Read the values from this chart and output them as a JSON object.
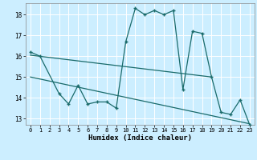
{
  "xlabel": "Humidex (Indice chaleur)",
  "bg_color": "#cceeff",
  "grid_color": "#ffffff",
  "line_color": "#1a6b6b",
  "xlim": [
    -0.5,
    23.5
  ],
  "ylim": [
    12.7,
    18.55
  ],
  "yticks": [
    13,
    14,
    15,
    16,
    17,
    18
  ],
  "xticks": [
    0,
    1,
    2,
    3,
    4,
    5,
    6,
    7,
    8,
    9,
    10,
    11,
    12,
    13,
    14,
    15,
    16,
    17,
    18,
    19,
    20,
    21,
    22,
    23
  ],
  "line1_x": [
    0,
    1,
    3,
    4,
    5,
    6,
    7,
    8,
    9,
    10,
    11,
    12,
    13,
    14,
    15,
    16,
    17,
    18,
    19,
    20,
    21,
    22,
    23
  ],
  "line1_y": [
    16.2,
    16.0,
    14.2,
    13.7,
    14.6,
    13.7,
    13.8,
    13.8,
    13.5,
    16.7,
    18.3,
    18.0,
    18.2,
    18.0,
    18.2,
    14.4,
    17.2,
    17.1,
    15.0,
    13.3,
    13.2,
    13.9,
    12.7
  ],
  "line2_x": [
    0,
    19
  ],
  "line2_y": [
    16.05,
    15.0
  ],
  "line3_x": [
    0,
    23
  ],
  "line3_y": [
    15.0,
    12.75
  ]
}
